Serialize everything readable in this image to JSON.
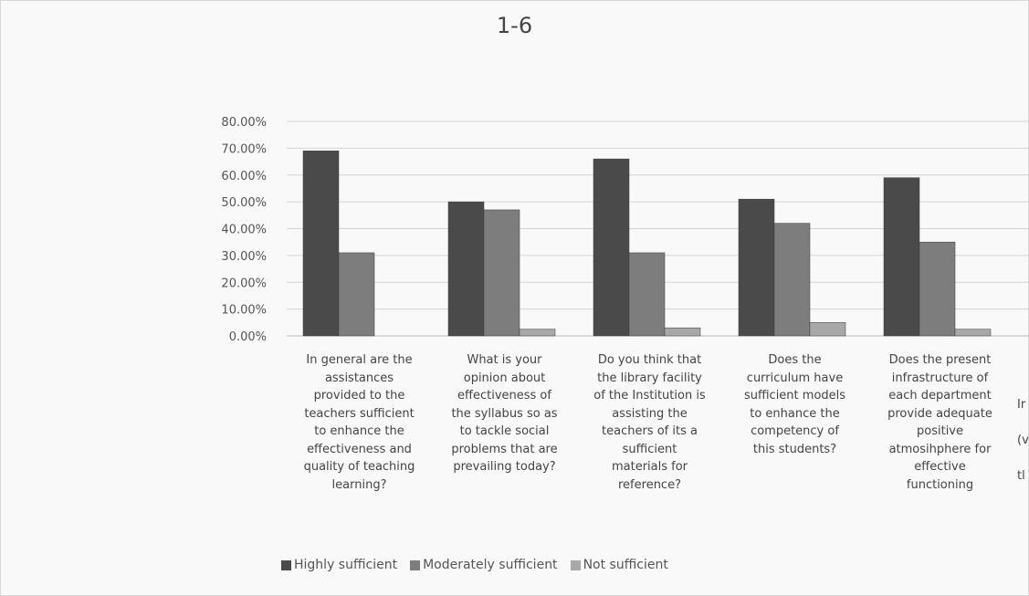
{
  "chart_data": {
    "type": "bar",
    "title": "1-6",
    "ylim": [
      0,
      0.8
    ],
    "yticks": [
      "0.00%",
      "10.00%",
      "20.00%",
      "30.00%",
      "40.00%",
      "50.00%",
      "60.00%",
      "70.00%",
      "80.00%"
    ],
    "grid": true,
    "legend_position": "bottom",
    "categories": [
      "In general are the assistances provided to the teachers sufficient to enhance the effectiveness and quality of teaching learning?",
      "What is your opinion about effectiveness of the syllabus so as to tackle social problems that are prevailing today?",
      "Do you think that the library facility of the Institution is assisting the teachers of its a sufficient materials for reference?",
      "Does the curriculum have sufficient models to enhance the competency of this students?",
      "Does the present infrastructure of each department provide adequate positive atmosihphere for effective functioning"
    ],
    "category_lines": [
      [
        "In general are the",
        "assistances",
        "provided to the",
        "teachers sufficient",
        "to enhance the",
        "effectiveness and",
        "quality of teaching",
        "learning?"
      ],
      [
        "What is your",
        "opinion about",
        "effectiveness of",
        "the syllabus so as",
        "to tackle social",
        "problems that are",
        "prevailing today?"
      ],
      [
        "Do you think that",
        "the library facility",
        "of the Institution is",
        "assisting the",
        "teachers of its a",
        "sufficient",
        "materials for",
        "reference?"
      ],
      [
        "Does the",
        "curriculum have",
        "sufficient models",
        "to enhance the",
        "competency of",
        "this students?"
      ],
      [
        "Does the present",
        "infrastructure of",
        "each department",
        "provide adequate",
        "positive",
        "atmosihphere for",
        "effective",
        "functioning"
      ]
    ],
    "series": [
      {
        "name": "Highly sufficient",
        "color": "#4a4a4a",
        "values": [
          0.69,
          0.5,
          0.66,
          0.51,
          0.59
        ]
      },
      {
        "name": "Moderately sufficient",
        "color": "#7d7d7d",
        "values": [
          0.31,
          0.47,
          0.31,
          0.42,
          0.35
        ]
      },
      {
        "name": "Not sufficient",
        "color": "#a8a8a8",
        "values": [
          0.0,
          0.025,
          0.03,
          0.05,
          0.025
        ]
      }
    ],
    "cut_off_category_fragment": [
      "Ir",
      "(v",
      "tl"
    ]
  }
}
